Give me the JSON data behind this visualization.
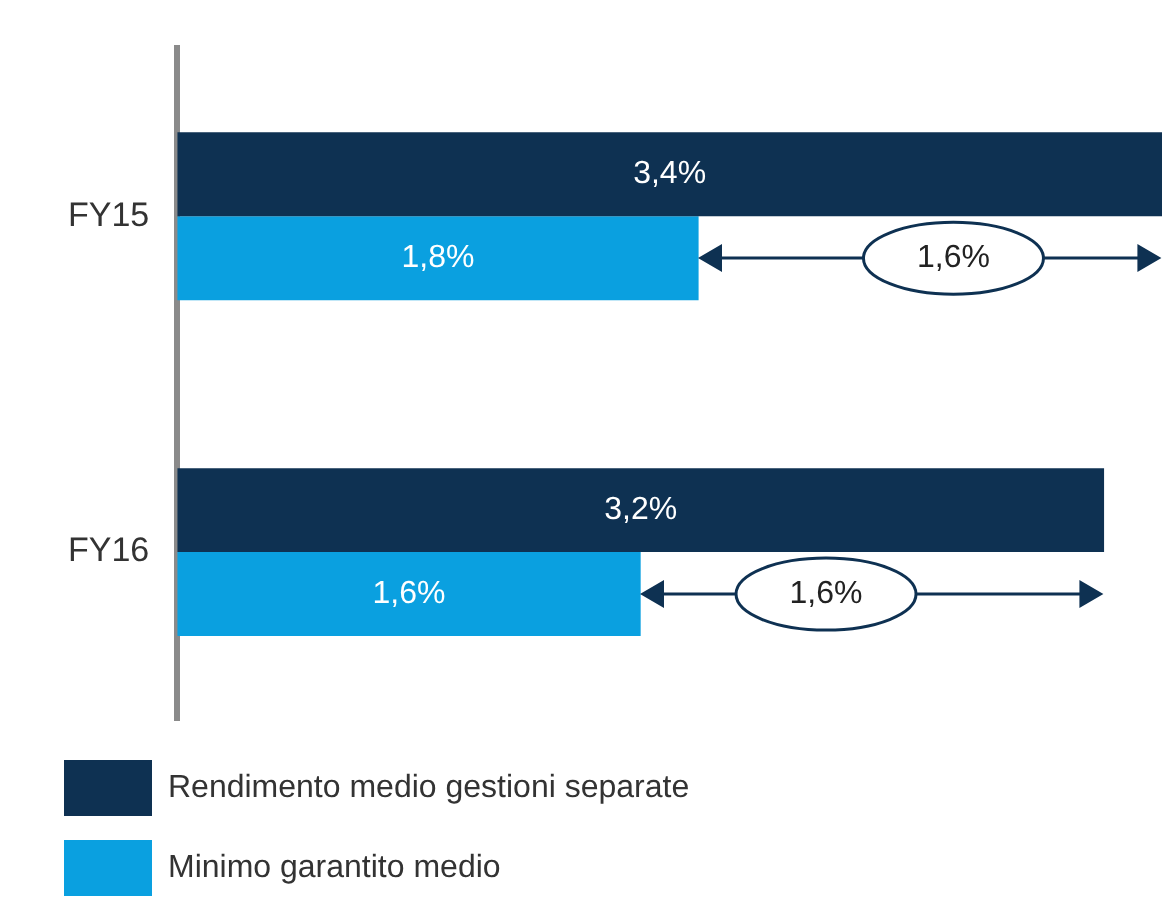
{
  "chart_data": {
    "type": "bar",
    "orientation": "horizontal",
    "categories": [
      "FY15",
      "FY16"
    ],
    "series": [
      {
        "name": "Rendimento medio gestioni separate",
        "color": "#0e3152",
        "values": [
          3.4,
          3.2
        ],
        "value_labels": [
          "3,4%",
          "3,2%"
        ]
      },
      {
        "name": "Minimo garantito medio",
        "color": "#0aa0e0",
        "values": [
          1.8,
          1.6
        ],
        "value_labels": [
          "1,8%",
          "1,6%"
        ]
      }
    ],
    "xlim": [
      0,
      3.4
    ],
    "tick_labels": "y",
    "grid": false,
    "legend": "bottom left",
    "annotations": [
      {
        "text": "1,6%",
        "x": 2.68,
        "y": "FY15"
      },
      {
        "text": "1,6%",
        "x": 2.24,
        "y": "FY16"
      }
    ]
  }
}
